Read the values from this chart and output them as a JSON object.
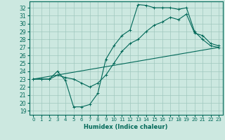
{
  "xlabel": "Humidex (Indice chaleur)",
  "background_color": "#cce8e0",
  "grid_color": "#a0c8be",
  "line_color": "#006858",
  "xlim": [
    -0.5,
    23.5
  ],
  "ylim": [
    18.5,
    32.8
  ],
  "yticks": [
    19,
    20,
    21,
    22,
    23,
    24,
    25,
    26,
    27,
    28,
    29,
    30,
    31,
    32
  ],
  "xticks": [
    0,
    1,
    2,
    3,
    4,
    5,
    6,
    7,
    8,
    9,
    10,
    11,
    12,
    13,
    14,
    15,
    16,
    17,
    18,
    19,
    20,
    21,
    22,
    23
  ],
  "series1_x": [
    0,
    1,
    2,
    3,
    4,
    5,
    6,
    7,
    8,
    9,
    10,
    11,
    12,
    13,
    14,
    15,
    16,
    17,
    18,
    19,
    20,
    21,
    22,
    23
  ],
  "series1_y": [
    23,
    23,
    23,
    24,
    22.8,
    19.5,
    19.5,
    19.8,
    21.2,
    25.5,
    27.2,
    28.5,
    29.2,
    32.4,
    32.3,
    32.0,
    32.0,
    32.0,
    31.8,
    32.0,
    29.0,
    28.0,
    27.2,
    27.0
  ],
  "series2_x": [
    0,
    1,
    2,
    3,
    4,
    5,
    6,
    7,
    8,
    9,
    10,
    11,
    12,
    13,
    14,
    15,
    16,
    17,
    18,
    19,
    20,
    21,
    22,
    23
  ],
  "series2_y": [
    23,
    23,
    23,
    23.5,
    23.2,
    23.0,
    22.5,
    22.0,
    22.5,
    23.5,
    25.0,
    26.5,
    27.5,
    28.0,
    29.0,
    29.8,
    30.2,
    30.8,
    30.5,
    31.2,
    28.8,
    28.5,
    27.5,
    27.2
  ],
  "series3_x": [
    0,
    23
  ],
  "series3_y": [
    23,
    27.0
  ]
}
